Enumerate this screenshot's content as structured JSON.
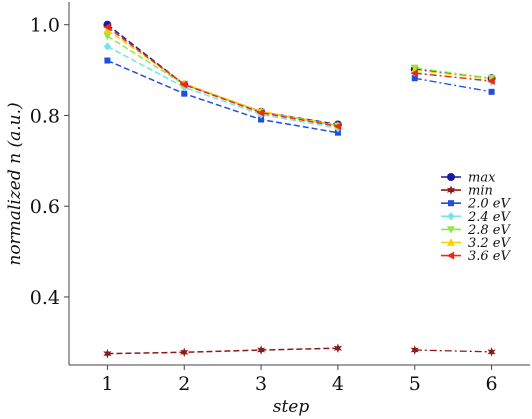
{
  "chart_data": {
    "type": "line",
    "xlabel": "step",
    "ylabel": "normalized n (a.u.)",
    "xlim": [
      0.5,
      6.5
    ],
    "ylim": [
      0.25,
      1.05
    ],
    "x_ticks": [
      1,
      2,
      3,
      4,
      5,
      6
    ],
    "y_ticks": [
      0.4,
      0.6,
      0.8,
      1.0
    ],
    "y_tick_labels": [
      "0.4",
      "0.6",
      "0.8",
      "1.0"
    ],
    "grid": false,
    "legend_position": "right",
    "series": [
      {
        "name": "max",
        "color": "#1a1a9c",
        "marker": "circle",
        "values": [
          1.0,
          0.868,
          0.808,
          0.78,
          0.902,
          0.882
        ]
      },
      {
        "name": "min",
        "color": "#8b1a1a",
        "marker": "star",
        "values": [
          0.275,
          0.278,
          0.283,
          0.287,
          0.283,
          0.279
        ]
      },
      {
        "name": "2.0  eV",
        "color": "#1f4fe0",
        "marker": "square",
        "values": [
          0.921,
          0.848,
          0.791,
          0.762,
          0.882,
          0.852
        ]
      },
      {
        "name": "2.4  eV",
        "color": "#74e4ec",
        "marker": "diamond",
        "values": [
          0.952,
          0.862,
          0.802,
          0.772,
          0.895,
          0.874
        ]
      },
      {
        "name": "2.8  eV",
        "color": "#8fe84a",
        "marker": "triangle-down",
        "values": [
          0.975,
          0.868,
          0.808,
          0.777,
          0.905,
          0.882
        ]
      },
      {
        "name": "3.2  eV",
        "color": "#f5d000",
        "marker": "triangle-up",
        "values": [
          0.988,
          0.87,
          0.809,
          0.778,
          0.9,
          0.88
        ]
      },
      {
        "name": "3.6  eV",
        "color": "#e82a1a",
        "marker": "triangle-left",
        "values": [
          0.995,
          0.868,
          0.806,
          0.776,
          0.893,
          0.876
        ]
      }
    ]
  }
}
